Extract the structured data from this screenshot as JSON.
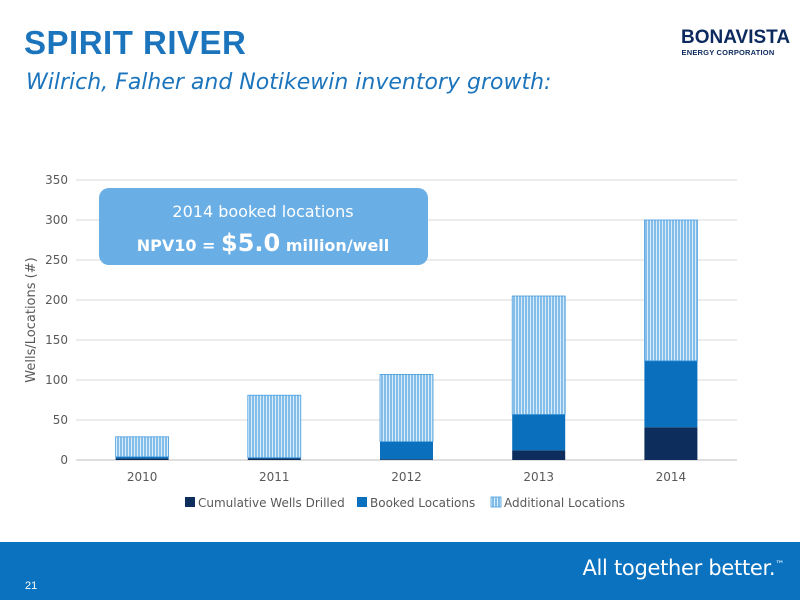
{
  "header": {
    "title": "SPIRIT RIVER",
    "subtitle": "Wilrich, Falher and Notikewin inventory growth:",
    "logo_name": "BONAVISTA",
    "logo_sub": "ENERGY CORPORATION"
  },
  "callout": {
    "line1": "2014 booked locations",
    "line2_prefix": "NPV10 = ",
    "line2_value": "$5.0",
    "line2_suffix": " million/well"
  },
  "footer": {
    "page_number": "21",
    "tagline": "All together better.",
    "trademark": "™"
  },
  "colors": {
    "brand_blue": "#1c75bc",
    "footer_blue": "#0b72c0",
    "wells_drilled": "#0d2e5c",
    "booked": "#0a70bd",
    "additional_fill": "#d9ecf9",
    "additional_lines": "#4a9ee0",
    "callout_bg": "#6aaee6"
  },
  "chart_data": {
    "type": "bar",
    "stacked": true,
    "categories": [
      "2010",
      "2011",
      "2012",
      "2013",
      "2014"
    ],
    "series": [
      {
        "name": "Cumulative Wells Drilled",
        "values": [
          2,
          2,
          1,
          12,
          41
        ]
      },
      {
        "name": "Booked Locations",
        "values": [
          2,
          1,
          22,
          45,
          83
        ]
      },
      {
        "name": "Additional Locations",
        "values": [
          25,
          78,
          84,
          148,
          176
        ]
      }
    ],
    "ylabel": "Wells/Locations (#)",
    "xlabel": "",
    "ylim": [
      0,
      350
    ],
    "yticks": [
      0,
      50,
      100,
      150,
      200,
      250,
      300,
      350
    ],
    "grid": true,
    "legend": "bottom"
  }
}
